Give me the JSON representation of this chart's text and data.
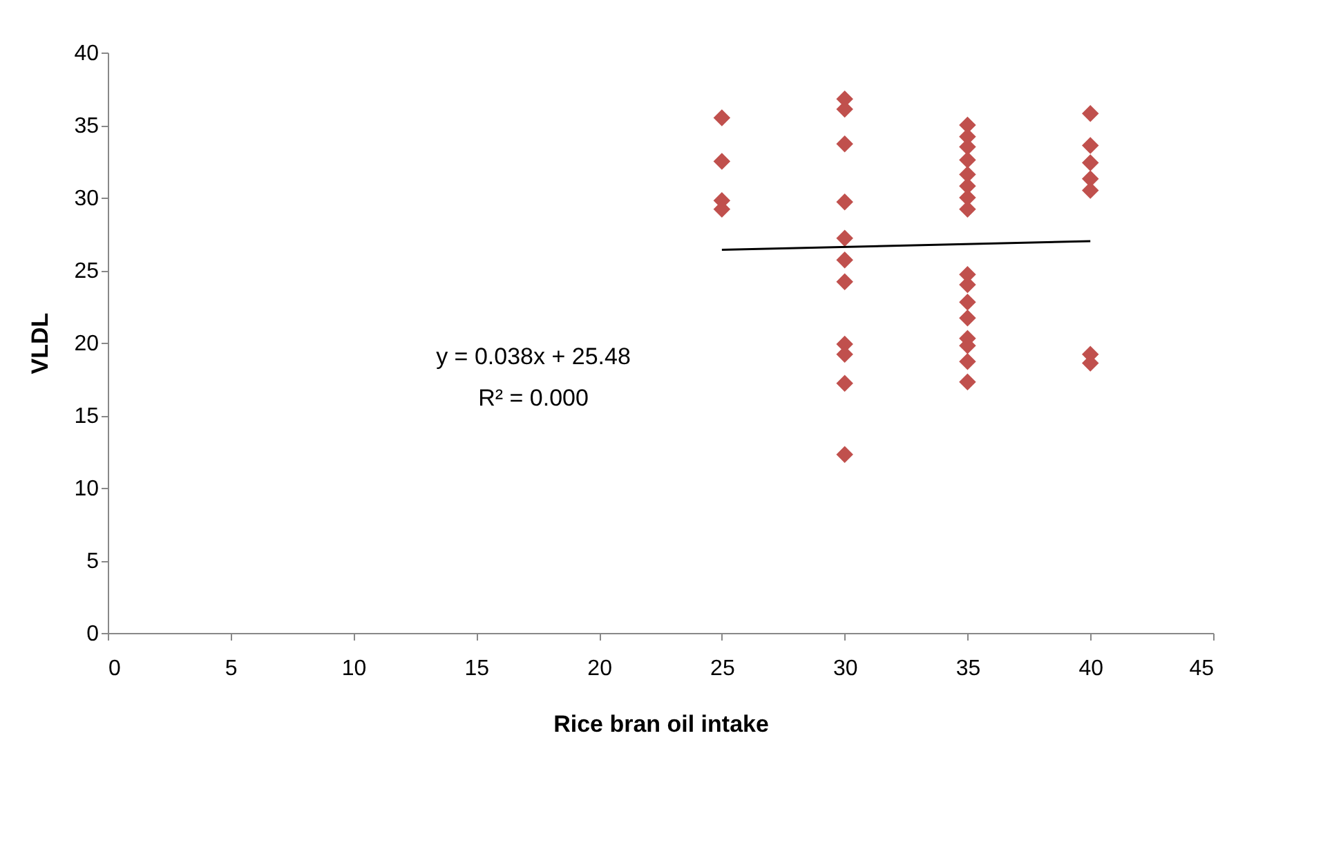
{
  "chart_data": {
    "type": "scatter",
    "xlabel": "Rice bran oil intake",
    "ylabel": "VLDL",
    "xlim": [
      0,
      45
    ],
    "xticks": [
      0,
      5,
      10,
      15,
      20,
      25,
      30,
      35,
      40,
      45
    ],
    "ylim": [
      0,
      40
    ],
    "yticks": [
      0,
      5,
      10,
      15,
      20,
      25,
      30,
      35,
      40
    ],
    "grid": false,
    "marker": "diamond",
    "series": [
      {
        "type": "scatter",
        "color": "#c0504d",
        "x": [
          25,
          25,
          25,
          25,
          30,
          30,
          30,
          30,
          30,
          30,
          30,
          30,
          30,
          30,
          30,
          35,
          35,
          35,
          35,
          35,
          35,
          35,
          35,
          35,
          35,
          35,
          35,
          35,
          35,
          35,
          35,
          40,
          40,
          40,
          40,
          40,
          40,
          40
        ],
        "values": [
          35.5,
          32.5,
          29.8,
          29.2,
          36.8,
          36.1,
          33.7,
          29.7,
          27.2,
          25.7,
          24.2,
          19.9,
          19.2,
          17.2,
          12.3,
          35.0,
          34.2,
          33.5,
          32.6,
          31.6,
          30.8,
          30.0,
          29.2,
          24.7,
          24.0,
          22.8,
          21.7,
          20.3,
          19.8,
          18.7,
          17.3,
          35.8,
          33.6,
          32.4,
          31.3,
          30.5,
          19.2,
          18.6
        ]
      },
      {
        "type": "line",
        "color": "#000000",
        "x": [
          25,
          40
        ],
        "values": [
          26.4,
          27.0
        ],
        "line_style": "solid",
        "marker": "none"
      }
    ],
    "annotations": [
      "y = 0.038x + 25.48",
      "R² = 0.000"
    ]
  }
}
